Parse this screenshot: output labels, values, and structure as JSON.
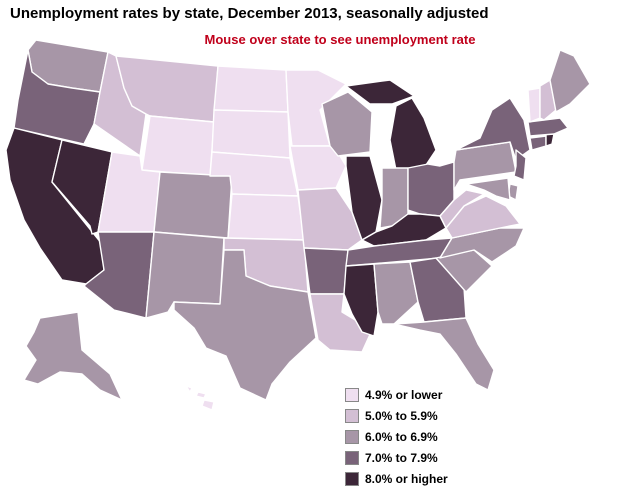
{
  "title": "Unemployment rates by state, December 2013, seasonally adjusted",
  "subtitle": "Mouse over state to see unemployment rate",
  "colors": {
    "bin1": "#efdff0",
    "bin2": "#d3bfd4",
    "bin3": "#a796a7",
    "bin4": "#796379",
    "bin5": "#3c2638"
  },
  "legend": [
    {
      "label": "4.9% or lower",
      "color": "#efdff0"
    },
    {
      "label": "5.0% to 5.9%",
      "color": "#d3bfd4"
    },
    {
      "label": "6.0% to 6.9%",
      "color": "#a796a7"
    },
    {
      "label": "7.0% to 7.9%",
      "color": "#796379"
    },
    {
      "label": "8.0% or higher",
      "color": "#3c2638"
    }
  ]
}
